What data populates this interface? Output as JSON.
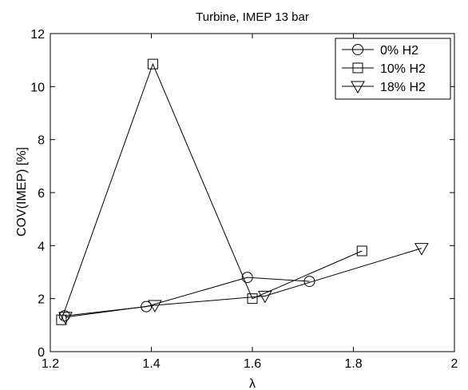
{
  "chart_data": {
    "type": "line",
    "title": "Turbine, IMEP 13 bar",
    "xlabel": "λ",
    "ylabel": "COV(IMEP) [%]",
    "xlim": [
      1.2,
      2.0
    ],
    "ylim": [
      0,
      12
    ],
    "xticks": [
      1.2,
      1.4,
      1.6,
      1.8,
      2.0
    ],
    "xtick_labels": [
      "1.2",
      "1.4",
      "1.6",
      "1.8",
      "2"
    ],
    "yticks": [
      0,
      2,
      4,
      6,
      8,
      10,
      12
    ],
    "ytick_labels": [
      "0",
      "2",
      "4",
      "6",
      "8",
      "10",
      "12"
    ],
    "grid": false,
    "legend_position": "top-right",
    "series": [
      {
        "name": "0% H2",
        "marker": "circle",
        "color": "#000000",
        "points": [
          [
            1.228,
            1.35
          ],
          [
            1.39,
            1.7
          ],
          [
            1.59,
            2.8
          ],
          [
            1.713,
            2.65
          ]
        ]
      },
      {
        "name": "10% H2",
        "marker": "square",
        "color": "#000000",
        "points": [
          [
            1.222,
            1.2
          ],
          [
            1.403,
            10.85
          ],
          [
            1.6,
            2.0
          ],
          [
            1.817,
            3.8
          ]
        ]
      },
      {
        "name": "18% H2",
        "marker": "triangle-down",
        "color": "#000000",
        "points": [
          [
            1.23,
            1.3
          ],
          [
            1.407,
            1.75
          ],
          [
            1.625,
            2.1
          ],
          [
            1.935,
            3.9
          ]
        ]
      }
    ]
  }
}
